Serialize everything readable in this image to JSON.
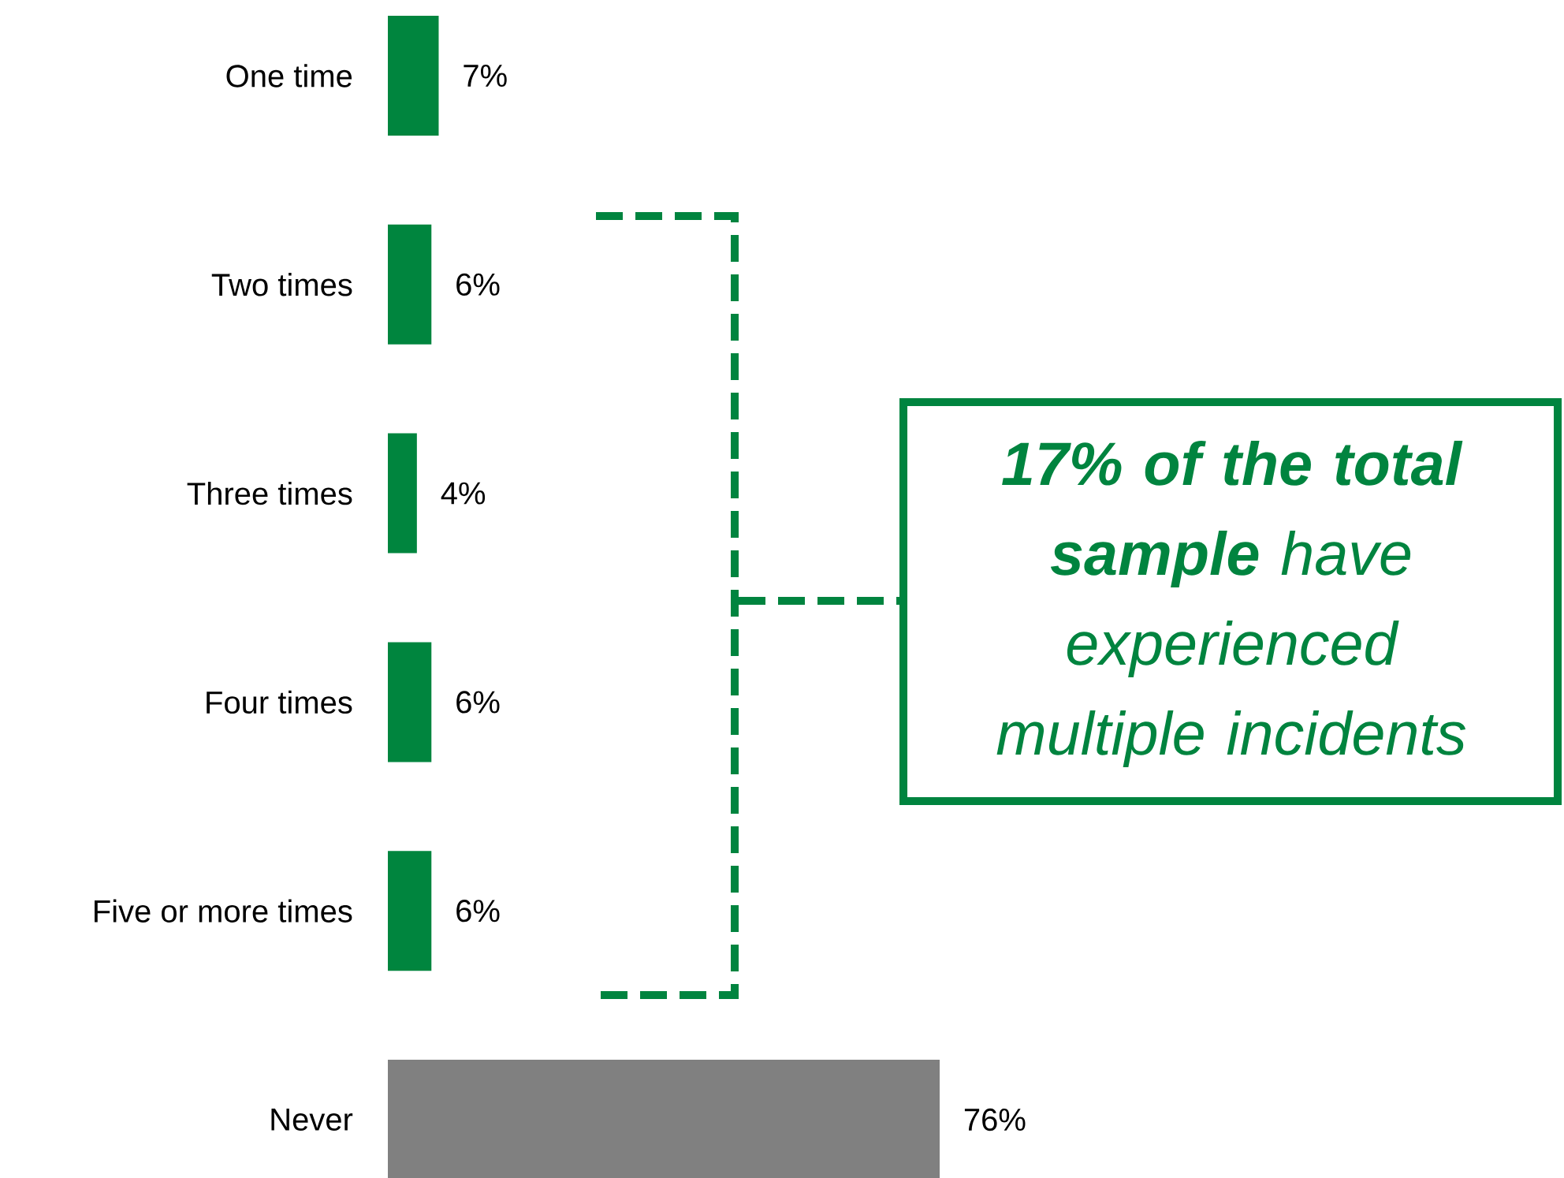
{
  "chart_data": {
    "type": "bar",
    "orientation": "horizontal",
    "categories": [
      "One time",
      "Two times",
      "Three times",
      "Four times",
      "Five or more times",
      "Never"
    ],
    "values": [
      7,
      6,
      4,
      6,
      6,
      76
    ],
    "colors": [
      "#00853e",
      "#00853e",
      "#00853e",
      "#00853e",
      "#00853e",
      "#808080"
    ],
    "value_labels": [
      "7%",
      "6%",
      "4%",
      "6%",
      "6%",
      "76%"
    ],
    "tick_labels": "y",
    "annotations": [
      "**17% of the total sample** have experienced multiple incidents"
    ]
  }
}
